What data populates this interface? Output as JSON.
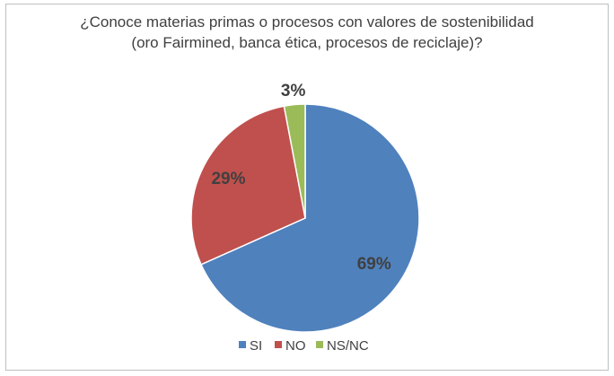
{
  "chart_data": {
    "type": "pie",
    "title_line1": "¿Conoce materias primas o procesos con valores de sostenibilidad",
    "title_line2": "(oro Fairmined, banca ética, procesos de reciclaje)?",
    "categories": [
      "SI",
      "NO",
      "NS/NC"
    ],
    "values": [
      69,
      29,
      3
    ],
    "labels": [
      "69%",
      "29%",
      "3%"
    ],
    "colors": [
      "#4f81bd",
      "#c0504d",
      "#9bbb59"
    ],
    "legend_position": "bottom"
  }
}
